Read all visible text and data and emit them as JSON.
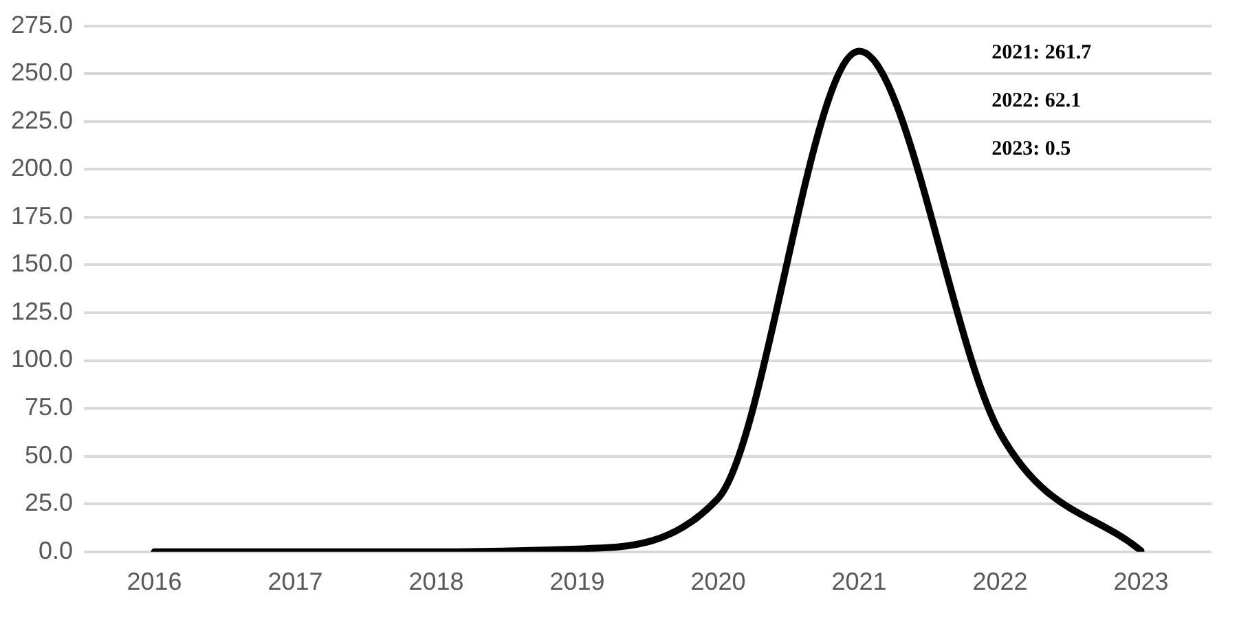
{
  "chart_data": {
    "type": "line",
    "categories": [
      "2016",
      "2017",
      "2018",
      "2019",
      "2020",
      "2021",
      "2022",
      "2023"
    ],
    "series": [
      {
        "color": "#000000",
        "values": [
          0,
          0,
          0,
          1.5,
          28,
          261.7,
          62.1,
          0.5
        ]
      }
    ],
    "ylim": [
      0,
      275
    ],
    "yticks": [
      {
        "value": 0,
        "label": "0.0"
      },
      {
        "value": 25,
        "label": "25.0"
      },
      {
        "value": 50,
        "label": "50.0"
      },
      {
        "value": 75,
        "label": "75.0"
      },
      {
        "value": 100,
        "label": "100.0"
      },
      {
        "value": 125,
        "label": "125.0"
      },
      {
        "value": 150,
        "label": "150.0"
      },
      {
        "value": 175,
        "label": "175.0"
      },
      {
        "value": 200,
        "label": "200.0"
      },
      {
        "value": 225,
        "label": "225.0"
      },
      {
        "value": 250,
        "label": "250.0"
      },
      {
        "value": 275,
        "label": "275.0"
      }
    ],
    "grid": "y",
    "legend": false,
    "marker": "none",
    "line_style": "solid",
    "annotations": [
      "2021: 261.7",
      "2022: 62.1",
      "2023: 0.5"
    ]
  }
}
